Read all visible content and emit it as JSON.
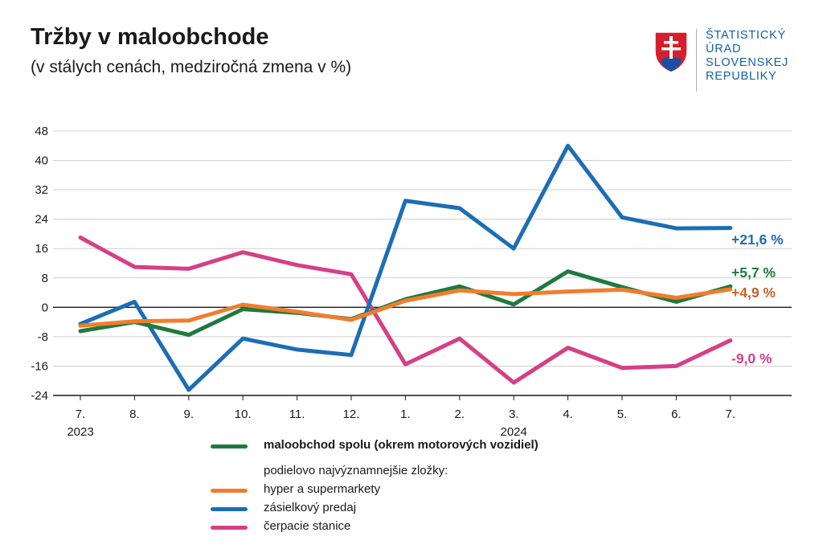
{
  "title": "Tržby v maloobchode",
  "subtitle": "(v stálych cenách, medziročná zmena v %)",
  "logo": {
    "lines": [
      "ŠTATISTICKÝ",
      "ÚRAD",
      "SLOVENSKEJ",
      "REPUBLIKY"
    ],
    "emblem_icon": "coat-of-arms-icon"
  },
  "chart_data": {
    "type": "line",
    "title": "Tržby v maloobchode",
    "subtitle": "(v stálych cenách, medziročná zmena v %)",
    "categories": [
      "7.",
      "8.",
      "9.",
      "10.",
      "11.",
      "12.",
      "1.",
      "2.",
      "3.",
      "4.",
      "5.",
      "6.",
      "7."
    ],
    "year_labels": [
      {
        "index": 0,
        "label": "2023"
      },
      {
        "index": 8,
        "label": "2024"
      }
    ],
    "yticks": [
      48,
      40,
      32,
      24,
      16,
      8,
      0,
      -8,
      -16,
      -24
    ],
    "ylim": [
      -24,
      48
    ],
    "grid": true,
    "series": [
      {
        "key": "retail",
        "name": "maloobchod spolu (okrem motorových vozidiel)",
        "color": "#1e7a3e",
        "values": [
          -6.5,
          -4.0,
          -7.5,
          -0.5,
          -1.5,
          -3.2,
          2.2,
          5.7,
          0.8,
          9.8,
          5.5,
          1.5,
          5.7
        ],
        "end_label": "+5,7 %"
      },
      {
        "key": "hyper",
        "name": "hyper a supermarkety",
        "color": "#f07d2e",
        "values": [
          -5.0,
          -3.8,
          -3.6,
          0.7,
          -1.2,
          -3.4,
          1.8,
          4.6,
          3.6,
          4.3,
          4.8,
          2.6,
          4.9
        ],
        "end_label": "+4,9 %"
      },
      {
        "key": "mail",
        "name": "zásielkový predaj",
        "color": "#1c6db5",
        "values": [
          -4.5,
          1.5,
          -22.5,
          -8.5,
          -11.5,
          -13.0,
          29.0,
          27.0,
          16.0,
          44.0,
          24.5,
          21.5,
          21.6
        ],
        "end_label": "+21,6 %"
      },
      {
        "key": "fuel",
        "name": "čerpacie stanice",
        "color": "#d63f86",
        "values": [
          19.0,
          11.0,
          10.5,
          15.0,
          11.5,
          9.0,
          -15.5,
          -8.5,
          -20.5,
          -11.0,
          -16.5,
          -16.0,
          -9.0
        ],
        "end_label": "-9,0 %"
      }
    ]
  },
  "legend": {
    "main": "maloobchod spolu (okrem motorových vozidiel)",
    "heading": "podielovo najvýznamnejšie zložky:",
    "items": [
      "hyper a supermarkety",
      "zásielkový predaj",
      "čerpacie stanice"
    ]
  },
  "colors": {
    "retail": "#1e7a3e",
    "hyper": "#f07d2e",
    "mail": "#1c6db5",
    "fuel": "#d63f86",
    "label_retail": "#1e7a3e",
    "label_hyper": "#c8622a",
    "label_mail": "#1c6db5",
    "label_fuel": "#d63f86"
  }
}
